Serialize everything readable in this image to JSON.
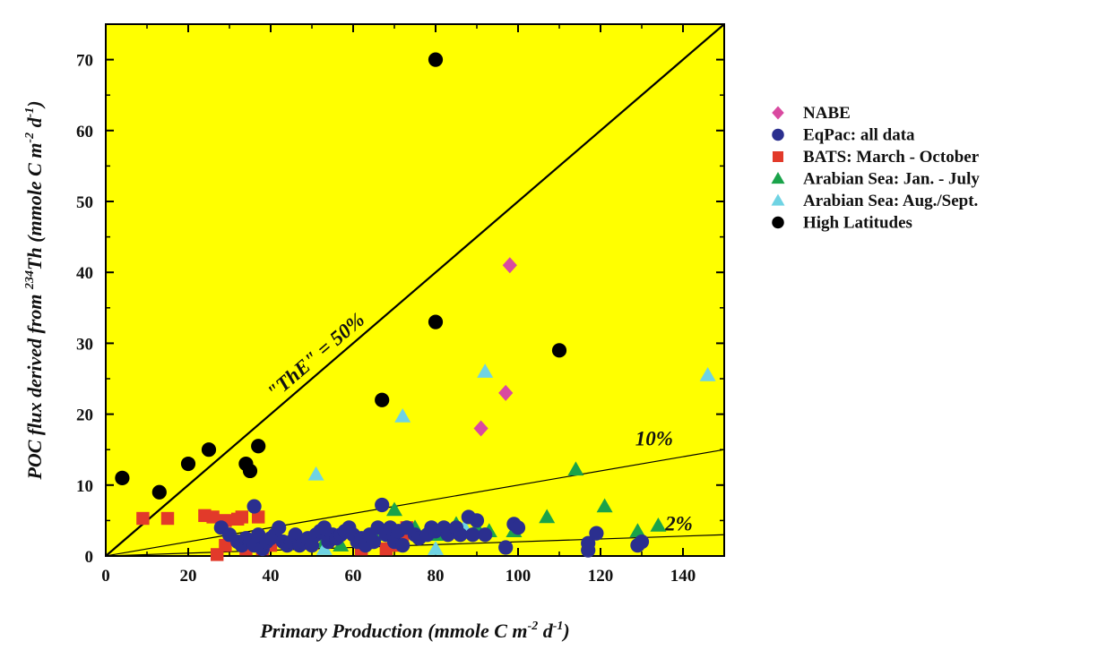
{
  "chart_data": {
    "type": "scatter",
    "xlabel": {
      "main": "Primary Production (mmole C m",
      "exp1": "-2",
      "mid": " d",
      "exp2": "-1",
      "end": ")"
    },
    "ylabel": {
      "main": "POC flux derived from ",
      "iso": "234",
      "th": "Th (mmole C m",
      "exp1": "-2",
      "mid": " d",
      "exp2": "-1",
      "end": ")"
    },
    "xlim": [
      0,
      150
    ],
    "ylim": [
      0,
      75
    ],
    "xticks": [
      0,
      20,
      40,
      60,
      80,
      100,
      120,
      140
    ],
    "yticks": [
      0,
      10,
      20,
      30,
      40,
      50,
      60,
      70
    ],
    "background_color": "#ffff00",
    "legend_position": "right",
    "reference_lines": [
      {
        "label": "\"ThE\" = 50%",
        "slope": 0.5,
        "style": "solid"
      },
      {
        "label": "10%",
        "slope": 0.1,
        "style": "thin"
      },
      {
        "label": "2%",
        "slope": 0.02,
        "style": "thin"
      }
    ],
    "series": [
      {
        "name": "NABE",
        "marker": "diamond",
        "color": "#d94aa0",
        "points": [
          [
            98,
            41
          ],
          [
            97,
            23
          ],
          [
            91,
            18
          ]
        ]
      },
      {
        "name": "EqPac: all data",
        "marker": "circle",
        "color": "#2b2f8f",
        "points": [
          [
            28,
            4
          ],
          [
            30,
            3
          ],
          [
            32,
            2
          ],
          [
            33,
            1.5
          ],
          [
            34,
            2.5
          ],
          [
            35,
            2
          ],
          [
            36,
            7
          ],
          [
            36,
            1.5
          ],
          [
            37,
            3
          ],
          [
            38,
            1
          ],
          [
            39,
            2
          ],
          [
            40,
            2.5
          ],
          [
            41,
            3
          ],
          [
            42,
            4
          ],
          [
            43,
            2
          ],
          [
            44,
            1.5
          ],
          [
            45,
            2
          ],
          [
            46,
            3
          ],
          [
            47,
            1.5
          ],
          [
            48,
            2
          ],
          [
            49,
            2.5
          ],
          [
            50,
            1.5
          ],
          [
            51,
            3
          ],
          [
            52,
            3.5
          ],
          [
            53,
            4
          ],
          [
            54,
            2
          ],
          [
            55,
            3
          ],
          [
            56,
            2.5
          ],
          [
            57,
            3
          ],
          [
            58,
            3.5
          ],
          [
            59,
            4
          ],
          [
            60,
            3
          ],
          [
            61,
            2
          ],
          [
            62,
            2.5
          ],
          [
            63,
            1.5
          ],
          [
            64,
            3
          ],
          [
            65,
            2
          ],
          [
            66,
            4
          ],
          [
            67,
            7.2
          ],
          [
            68,
            3
          ],
          [
            69,
            4
          ],
          [
            70,
            2
          ],
          [
            71,
            3.5
          ],
          [
            72,
            1.5
          ],
          [
            73,
            4
          ],
          [
            75,
            3
          ],
          [
            76,
            2.5
          ],
          [
            78,
            3
          ],
          [
            79,
            4
          ],
          [
            80,
            3.5
          ],
          [
            82,
            4
          ],
          [
            83,
            3
          ],
          [
            85,
            4
          ],
          [
            86,
            3
          ],
          [
            88,
            5.5
          ],
          [
            89,
            3
          ],
          [
            90,
            5
          ],
          [
            92,
            3
          ],
          [
            97,
            1.2
          ],
          [
            99,
            4.5
          ],
          [
            100,
            4
          ],
          [
            117,
            1.8
          ],
          [
            117,
            0.8
          ],
          [
            119,
            3.2
          ],
          [
            129,
            1.5
          ],
          [
            130,
            2
          ]
        ]
      },
      {
        "name": "BATS: March - October",
        "marker": "square",
        "color": "#e23a2a",
        "points": [
          [
            9,
            5.3
          ],
          [
            15,
            5.3
          ],
          [
            24,
            5.7
          ],
          [
            26,
            5.5
          ],
          [
            27,
            0.2
          ],
          [
            29,
            5
          ],
          [
            29,
            1.5
          ],
          [
            30,
            2.5
          ],
          [
            32,
            5.2
          ],
          [
            33,
            5.5
          ],
          [
            34,
            1
          ],
          [
            37,
            5.5
          ],
          [
            38,
            1
          ],
          [
            40,
            1.5
          ],
          [
            62,
            1
          ],
          [
            68,
            1
          ],
          [
            70,
            1.5
          ],
          [
            72,
            3
          ],
          [
            73,
            4
          ]
        ]
      },
      {
        "name": "Arabian Sea: Jan. - July",
        "marker": "triangle",
        "color": "#1aa34a",
        "points": [
          [
            53,
            2
          ],
          [
            57,
            1.5
          ],
          [
            65,
            3
          ],
          [
            70,
            6.5
          ],
          [
            75,
            4
          ],
          [
            80,
            3
          ],
          [
            85,
            4.5
          ],
          [
            90,
            4
          ],
          [
            93,
            3.5
          ],
          [
            99,
            3.5
          ],
          [
            107,
            5.5
          ],
          [
            114,
            12.2
          ],
          [
            121,
            7
          ],
          [
            129,
            3.5
          ],
          [
            134,
            4.3
          ]
        ]
      },
      {
        "name": "Arabian Sea: Aug./Sept.",
        "marker": "triangle",
        "color": "#6fd3e3",
        "points": [
          [
            51,
            11.5
          ],
          [
            53,
            1
          ],
          [
            72,
            19.7
          ],
          [
            80,
            1
          ],
          [
            87,
            4
          ],
          [
            92,
            26
          ],
          [
            146,
            25.5
          ]
        ]
      },
      {
        "name": "High Latitudes",
        "marker": "circle",
        "color": "#000000",
        "points": [
          [
            4,
            11
          ],
          [
            13,
            9
          ],
          [
            20,
            13
          ],
          [
            25,
            15
          ],
          [
            34,
            13
          ],
          [
            35,
            12
          ],
          [
            37,
            15.5
          ],
          [
            67,
            22
          ],
          [
            80,
            70
          ],
          [
            80,
            33
          ],
          [
            110,
            29
          ]
        ]
      }
    ]
  }
}
